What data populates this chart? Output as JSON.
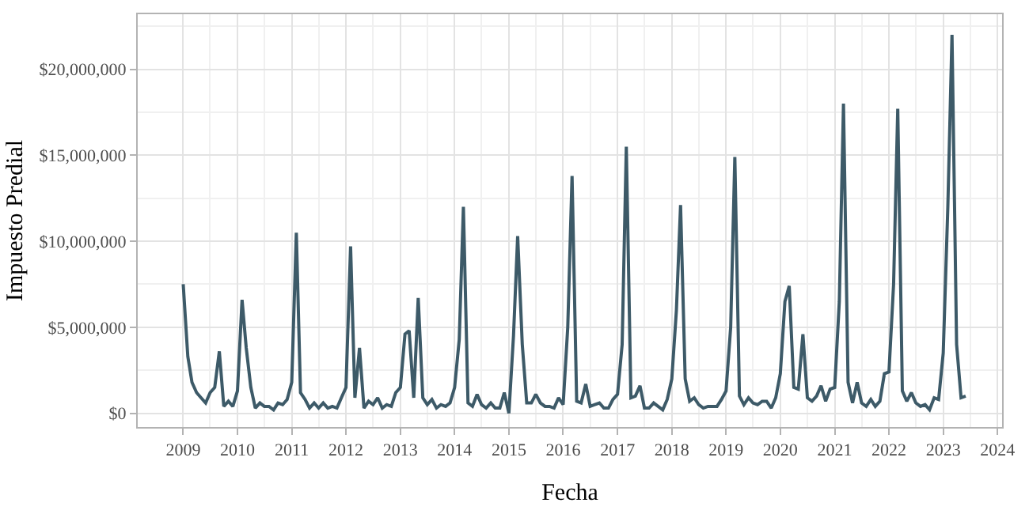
{
  "chart_data": {
    "type": "line",
    "xlabel": "Fecha",
    "ylabel": "Impuesto Predial",
    "x": [
      "2009-01",
      "2009-02",
      "2009-03",
      "2009-04",
      "2009-05",
      "2009-06",
      "2009-07",
      "2009-08",
      "2009-09",
      "2009-10",
      "2009-11",
      "2009-12",
      "2010-01",
      "2010-02",
      "2010-03",
      "2010-04",
      "2010-05",
      "2010-06",
      "2010-07",
      "2010-08",
      "2010-09",
      "2010-10",
      "2010-11",
      "2010-12",
      "2011-01",
      "2011-02",
      "2011-03",
      "2011-04",
      "2011-05",
      "2011-06",
      "2011-07",
      "2011-08",
      "2011-09",
      "2011-10",
      "2011-11",
      "2011-12",
      "2012-01",
      "2012-02",
      "2012-03",
      "2012-04",
      "2012-05",
      "2012-06",
      "2012-07",
      "2012-08",
      "2012-09",
      "2012-10",
      "2012-11",
      "2012-12",
      "2013-01",
      "2013-02",
      "2013-03",
      "2013-04",
      "2013-05",
      "2013-06",
      "2013-07",
      "2013-08",
      "2013-09",
      "2013-10",
      "2013-11",
      "2013-12",
      "2014-01",
      "2014-02",
      "2014-03",
      "2014-04",
      "2014-05",
      "2014-06",
      "2014-07",
      "2014-08",
      "2014-09",
      "2014-10",
      "2014-11",
      "2014-12",
      "2015-01",
      "2015-02",
      "2015-03",
      "2015-04",
      "2015-05",
      "2015-06",
      "2015-07",
      "2015-08",
      "2015-09",
      "2015-10",
      "2015-11",
      "2015-12",
      "2016-01",
      "2016-02",
      "2016-03",
      "2016-04",
      "2016-05",
      "2016-06",
      "2016-07",
      "2016-08",
      "2016-09",
      "2016-10",
      "2016-11",
      "2016-12",
      "2017-01",
      "2017-02",
      "2017-03",
      "2017-04",
      "2017-05",
      "2017-06",
      "2017-07",
      "2017-08",
      "2017-09",
      "2017-10",
      "2017-11",
      "2017-12",
      "2018-01",
      "2018-02",
      "2018-03",
      "2018-04",
      "2018-05",
      "2018-06",
      "2018-07",
      "2018-08",
      "2018-09",
      "2018-10",
      "2018-11",
      "2018-12",
      "2019-01",
      "2019-02",
      "2019-03",
      "2019-04",
      "2019-05",
      "2019-06",
      "2019-07",
      "2019-08",
      "2019-09",
      "2019-10",
      "2019-11",
      "2019-12",
      "2020-01",
      "2020-02",
      "2020-03",
      "2020-04",
      "2020-05",
      "2020-06",
      "2020-07",
      "2020-08",
      "2020-09",
      "2020-10",
      "2020-11",
      "2020-12",
      "2021-01",
      "2021-02",
      "2021-03",
      "2021-04",
      "2021-05",
      "2021-06",
      "2021-07",
      "2021-08",
      "2021-09",
      "2021-10",
      "2021-11",
      "2021-12",
      "2022-01",
      "2022-02",
      "2022-03",
      "2022-04",
      "2022-05",
      "2022-06",
      "2022-07",
      "2022-08",
      "2022-09",
      "2022-10",
      "2022-11",
      "2022-12",
      "2023-01",
      "2023-02",
      "2023-03",
      "2023-04",
      "2023-05",
      "2023-06"
    ],
    "series": [
      {
        "color": "#3d5a68",
        "values": [
          7500000,
          3300000,
          1800000,
          1200000,
          900000,
          600000,
          1200000,
          1500000,
          3600000,
          400000,
          700000,
          400000,
          1300000,
          6600000,
          3800000,
          1500000,
          300000,
          600000,
          400000,
          400000,
          200000,
          600000,
          500000,
          800000,
          1800000,
          10500000,
          1200000,
          800000,
          300000,
          600000,
          300000,
          600000,
          300000,
          400000,
          300000,
          900000,
          1500000,
          9700000,
          900000,
          3800000,
          300000,
          700000,
          500000,
          900000,
          300000,
          500000,
          400000,
          1200000,
          1500000,
          4600000,
          4800000,
          900000,
          6700000,
          900000,
          500000,
          800000,
          300000,
          500000,
          400000,
          600000,
          1500000,
          4300000,
          12000000,
          600000,
          400000,
          1100000,
          500000,
          300000,
          600000,
          300000,
          300000,
          1200000,
          0,
          4500000,
          10300000,
          4000000,
          600000,
          600000,
          1100000,
          600000,
          400000,
          400000,
          300000,
          900000,
          500000,
          5000000,
          13800000,
          700000,
          600000,
          1700000,
          400000,
          500000,
          600000,
          300000,
          300000,
          800000,
          1100000,
          4000000,
          15500000,
          900000,
          1000000,
          1600000,
          300000,
          300000,
          600000,
          400000,
          200000,
          800000,
          2000000,
          6000000,
          12100000,
          2000000,
          700000,
          900000,
          500000,
          300000,
          400000,
          400000,
          400000,
          800000,
          1300000,
          5000000,
          14900000,
          1000000,
          500000,
          900000,
          600000,
          500000,
          700000,
          700000,
          300000,
          900000,
          2300000,
          6500000,
          7400000,
          1500000,
          1400000,
          4600000,
          900000,
          700000,
          1000000,
          1600000,
          700000,
          1400000,
          1500000,
          6500000,
          18000000,
          1800000,
          600000,
          1800000,
          600000,
          400000,
          800000,
          400000,
          700000,
          2300000,
          2400000,
          7500000,
          17700000,
          1300000,
          700000,
          1200000,
          600000,
          400000,
          500000,
          200000,
          900000,
          800000,
          3500000,
          12000000,
          22000000,
          4000000,
          900000,
          1000000
        ]
      }
    ],
    "xlim": [
      "2008-03",
      "2024-02"
    ],
    "xticks": [
      "2009",
      "2010",
      "2011",
      "2012",
      "2013",
      "2014",
      "2015",
      "2016",
      "2017",
      "2018",
      "2019",
      "2020",
      "2021",
      "2022",
      "2023",
      "2024"
    ],
    "ylim": [
      -800000,
      23200000
    ],
    "yticks": [
      {
        "value": 0,
        "label": "$0"
      },
      {
        "value": 5000000,
        "label": "$5,000,000"
      },
      {
        "value": 10000000,
        "label": "$10,000,000"
      },
      {
        "value": 15000000,
        "label": "$15,000,000"
      },
      {
        "value": 20000000,
        "label": "$20,000,000"
      }
    ],
    "grid": true,
    "legend": false,
    "line_style": "solid",
    "marker": "none"
  }
}
